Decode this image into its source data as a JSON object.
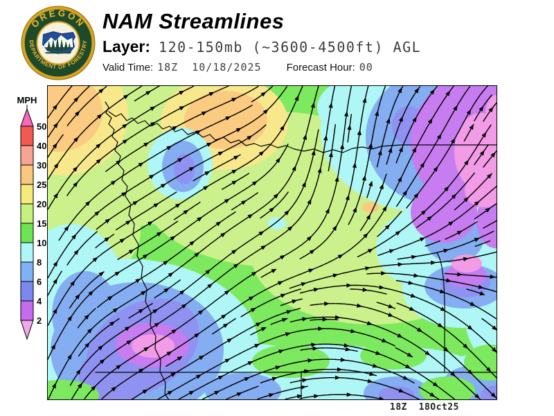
{
  "header": {
    "title": "NAM Streamlines",
    "layer_label": "Layer:",
    "layer_value": "120-150mb (~3600-4500ft) AGL",
    "valid_time_label": "Valid Time:",
    "valid_time_value": "18Z  10/18/2025",
    "forecast_hour_label": "Forecast Hour:",
    "forecast_hour_value": "00"
  },
  "logo": {
    "arc_top_text": "OREGON",
    "arc_bottom_text": "DEPARTMENT OF FORESTRY",
    "ring_color": "#1e4a2c",
    "gold_color": "#d9a31c",
    "letter_color": "#edb82d",
    "inner_color": "#f6f2df",
    "emblem_blue": "#1d4f9c"
  },
  "legend": {
    "title": "MPH",
    "ticks": [
      "50",
      "40",
      "30",
      "25",
      "20",
      "15",
      "10",
      "8",
      "6",
      "4",
      "2"
    ],
    "band_colors": [
      "#f2594f",
      "#f7a492",
      "#f9c77d",
      "#f6ea7d",
      "#c6f17e",
      "#6ce454",
      "#aff6f6",
      "#7fb2f4",
      "#7d88ef",
      "#c46cf0"
    ],
    "arrow_top_color": "#f768b8",
    "arrow_bottom_color": "#f0a8e8"
  },
  "map": {
    "timestamp": "18Z  18Oct25",
    "palette": {
      "green": "#7de95e",
      "yellow_green": "#cbf18c",
      "yellow": "#f7e88c",
      "orange": "#facb80",
      "cyan": "#aff6f6",
      "blue": "#84adf2",
      "violet": "#9092f2",
      "purple": "#c77cf0",
      "pink": "#f29be6",
      "stream_color": "#000000"
    }
  }
}
